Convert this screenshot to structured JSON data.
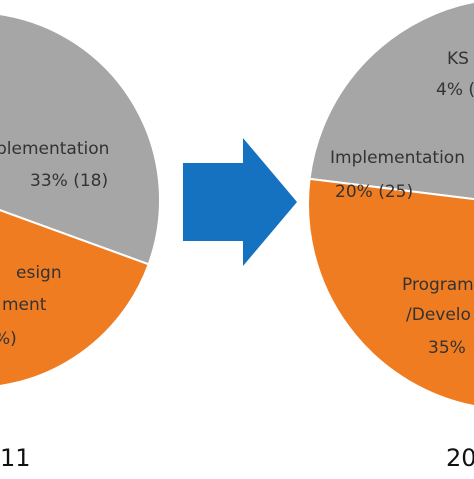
{
  "colors": {
    "gray": "#a6a6a6",
    "orange": "#f07c22",
    "yellow": "#f5b800",
    "arrow": "#1572c0",
    "slice_border": "#ffffff"
  },
  "arrow_icon": "right-arrow-icon",
  "chart_data": [
    {
      "type": "pie",
      "year_label": "11",
      "slices": [
        {
          "name": "Implementation",
          "text_lines": [
            "plementation",
            "33% (18)"
          ],
          "color": "#a6a6a6"
        },
        {
          "name": "Design",
          "text_lines": [
            "esign",
            "ment",
            "%)"
          ],
          "color": "#f07c22"
        }
      ]
    },
    {
      "type": "pie",
      "year_label": "20",
      "slices": [
        {
          "name": "KS",
          "text_lines": [
            "KS",
            "4% ("
          ],
          "color": "#f5b800"
        },
        {
          "name": "Implementation",
          "text_lines": [
            "Implementation",
            "20% (25)"
          ],
          "color": "#a6a6a6"
        },
        {
          "name": "Programming/Development",
          "text_lines": [
            "Program",
            "/Develo",
            "35%"
          ],
          "color": "#f07c22"
        }
      ]
    }
  ]
}
